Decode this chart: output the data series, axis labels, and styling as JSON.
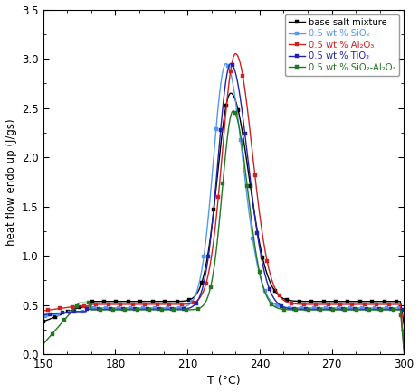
{
  "xlabel": "T (°C)",
  "ylabel": "heat flow endo up (J/gs)",
  "xlim": [
    150,
    300
  ],
  "ylim": [
    0,
    3.5
  ],
  "xticks": [
    150,
    180,
    210,
    240,
    270,
    300
  ],
  "yticks": [
    0,
    0.5,
    1.0,
    1.5,
    2.0,
    2.5,
    3.0,
    3.5
  ],
  "legend": [
    {
      "label": "base salt mixture",
      "color": "#000000"
    },
    {
      "label": "0.5 wt.% SiO₂",
      "color": "#5599EE"
    },
    {
      "label": "0.5 wt.% Al₂O₃",
      "color": "#CC2222"
    },
    {
      "label": "0.5 wt.% TiO₂",
      "color": "#2222AA"
    },
    {
      "label": "0.5 wt.% SiO₂-Al₂O₃",
      "color": "#227722"
    }
  ],
  "marker_size": 2.5,
  "linewidth": 1.0
}
